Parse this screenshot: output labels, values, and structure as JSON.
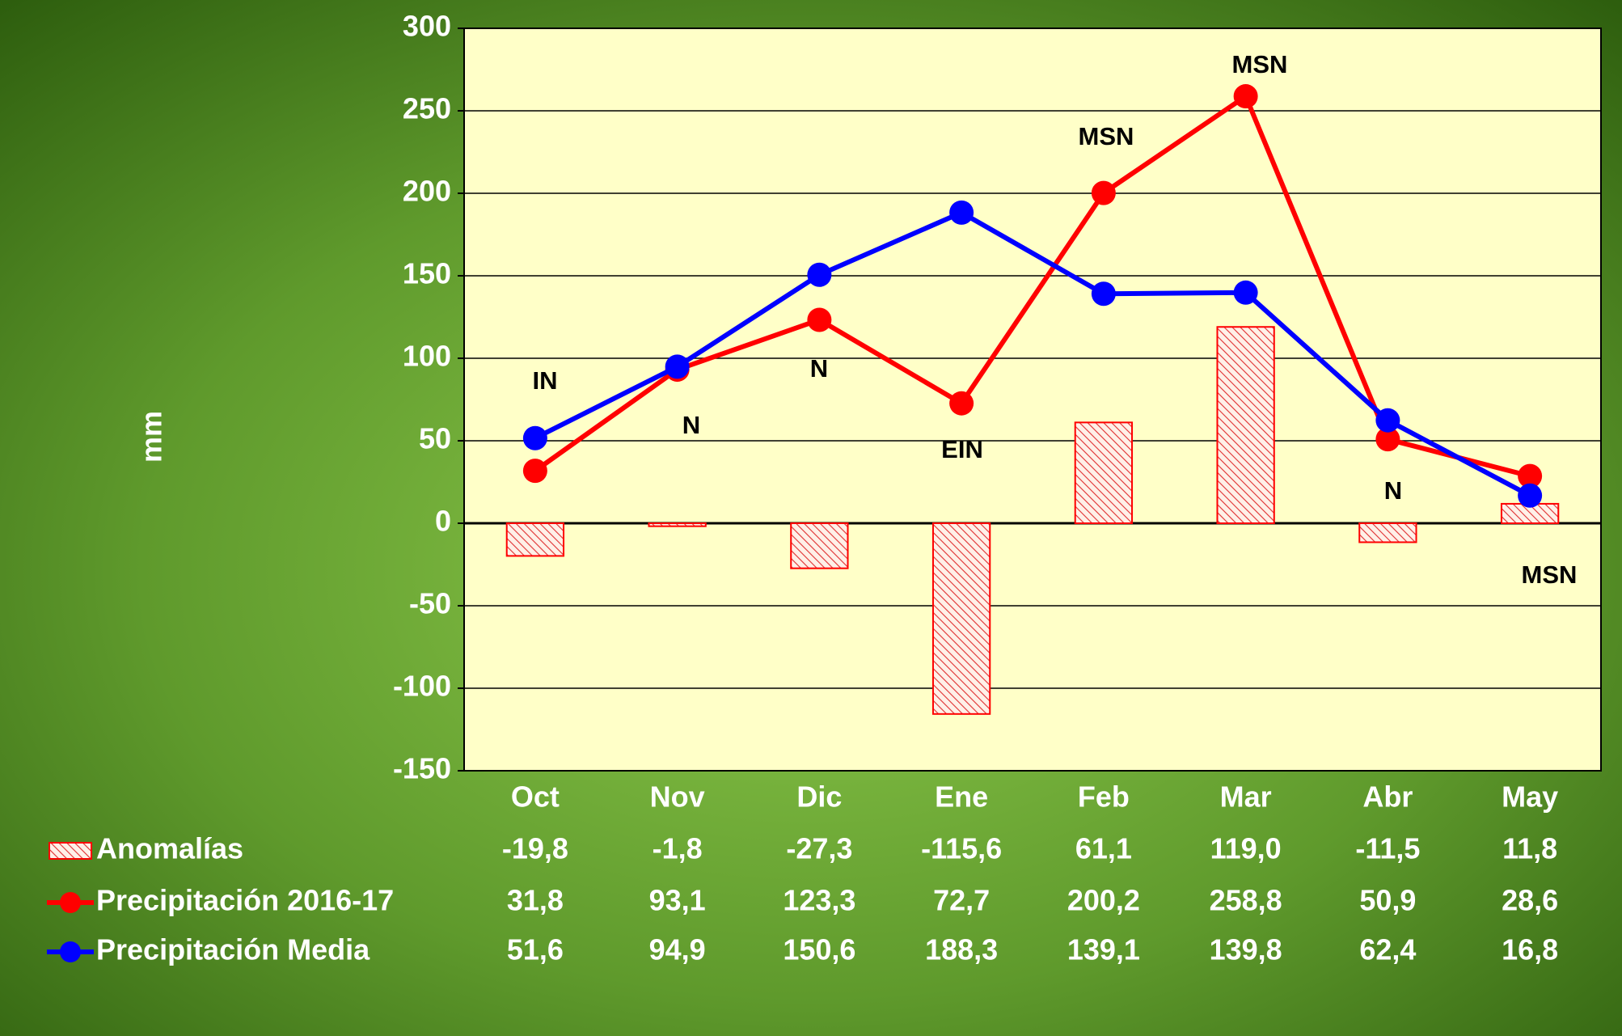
{
  "chart_data": {
    "type": "bar",
    "y_label": "mm",
    "categories": [
      "Oct",
      "Nov",
      "Dic",
      "Ene",
      "Feb",
      "Mar",
      "Abr",
      "May"
    ],
    "series": [
      {
        "name": "Anomalías",
        "type": "bar",
        "color": "#ff0000",
        "values": [
          -19.8,
          -1.8,
          -27.3,
          -115.6,
          61.1,
          119.0,
          -11.5,
          11.8
        ],
        "value_labels": [
          "-19,8",
          "-1,8",
          "-27,3",
          "-115,6",
          "61,1",
          "119,0",
          "-11,5",
          "11,8"
        ]
      },
      {
        "name": "Precipitación 2016-17",
        "type": "line",
        "color": "#ff0000",
        "values": [
          31.8,
          93.1,
          123.3,
          72.7,
          200.2,
          258.8,
          50.9,
          28.6
        ],
        "value_labels": [
          "31,8",
          "93,1",
          "123,3",
          "72,7",
          "200,2",
          "258,8",
          "50,9",
          "28,6"
        ]
      },
      {
        "name": "Precipitación Media",
        "type": "line",
        "color": "#0000ff",
        "values": [
          51.6,
          94.9,
          150.6,
          188.3,
          139.1,
          139.8,
          62.4,
          16.8
        ],
        "value_labels": [
          "51,6",
          "94,9",
          "150,6",
          "188,3",
          "139,1",
          "139,8",
          "62,4",
          "16,8"
        ]
      }
    ],
    "annotations": [
      "IN",
      "N",
      "N",
      "EIN",
      "MSN",
      "MSN",
      "N",
      "MSN"
    ],
    "ylim": [
      -150,
      300
    ],
    "yticks": [
      -150,
      -100,
      -50,
      0,
      50,
      100,
      150,
      200,
      250,
      300
    ],
    "grid": true
  }
}
